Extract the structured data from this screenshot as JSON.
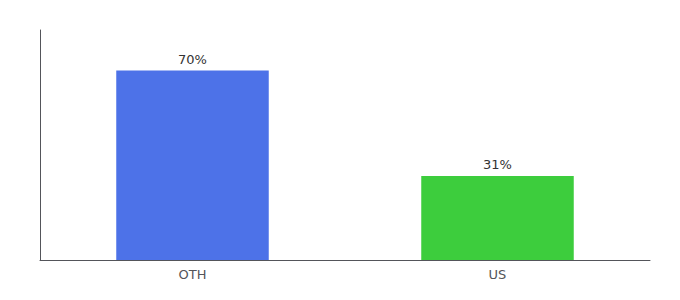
{
  "chart_data": {
    "type": "bar",
    "categories": [
      "OTH",
      "US"
    ],
    "values": [
      70,
      31
    ],
    "value_labels": [
      "70%",
      "31%"
    ],
    "colors": [
      "#4d72e8",
      "#3dcd3d"
    ],
    "ylim": [
      0,
      85
    ],
    "data_labels": true,
    "tick_labels": "x",
    "grid": false
  }
}
